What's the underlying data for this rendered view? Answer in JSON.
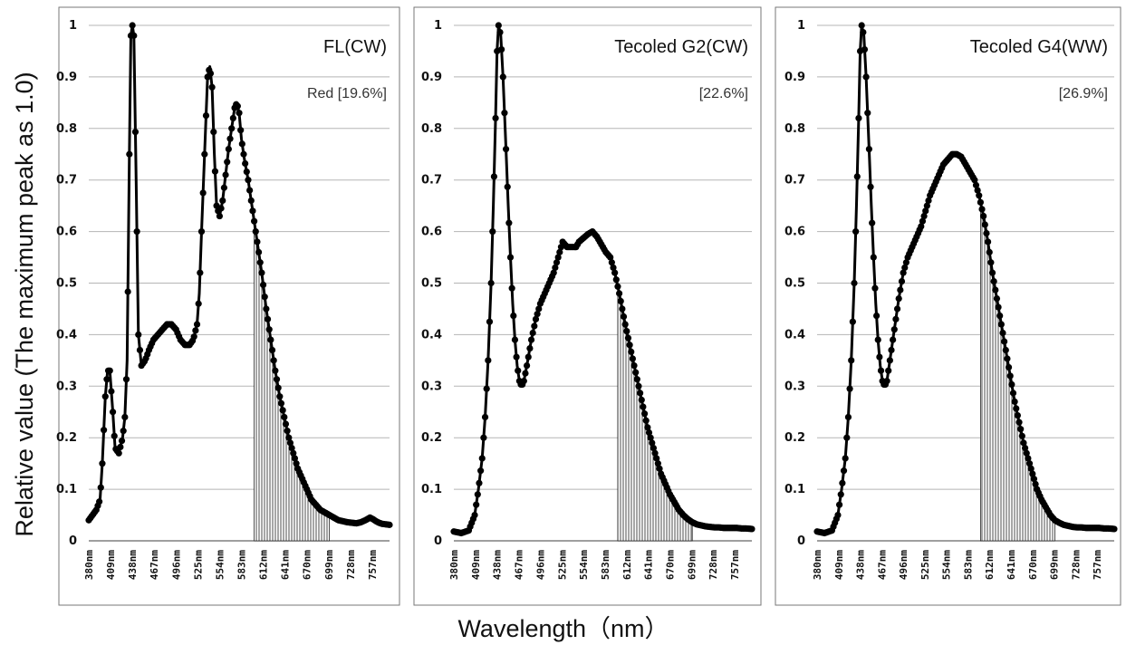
{
  "figure": {
    "ylabel": "Relative value (The maximum peak as 1.0)",
    "xlabel": "Wavelength（nm）"
  },
  "chart_data": [
    {
      "type": "line",
      "title": "FL(CW)",
      "annotation": "Red [19.6%]",
      "ylim": [
        0,
        1
      ],
      "yticks": [
        "0",
        "0.1",
        "0.2",
        "0.3",
        "0.4",
        "0.5",
        "0.6",
        "0.7",
        "0.8",
        "0.9",
        "1"
      ],
      "xlim": [
        380,
        780
      ],
      "xticks": [
        "380nm",
        "409nm",
        "438nm",
        "467nm",
        "496nm",
        "525nm",
        "554nm",
        "583nm",
        "612nm",
        "641nm",
        "670nm",
        "699nm",
        "728nm",
        "757nm"
      ],
      "grid": true,
      "shaded_region_nm": [
        600,
        700
      ],
      "series": [
        {
          "x": [
            380,
            385,
            390,
            395,
            398,
            402,
            405,
            408,
            412,
            415,
            420,
            425,
            428,
            431,
            434,
            436,
            438,
            440,
            443,
            446,
            450,
            455,
            460,
            466,
            472,
            478,
            484,
            490,
            496,
            502,
            508,
            514,
            519,
            524,
            527,
            530,
            534,
            538,
            541,
            544,
            547,
            550,
            554,
            558,
            562,
            566,
            570,
            574,
            577,
            580,
            583,
            587,
            592,
            598,
            604,
            610,
            616,
            622,
            628,
            634,
            640,
            646,
            652,
            658,
            664,
            670,
            676,
            682,
            688,
            694,
            700,
            706,
            712,
            718,
            724,
            730,
            736,
            742,
            748,
            754,
            758,
            762,
            766,
            770,
            775,
            780
          ],
          "y": [
            0.04,
            0.05,
            0.06,
            0.08,
            0.15,
            0.28,
            0.33,
            0.33,
            0.25,
            0.18,
            0.17,
            0.2,
            0.24,
            0.35,
            0.75,
            0.98,
            1.0,
            0.98,
            0.7,
            0.4,
            0.34,
            0.35,
            0.37,
            0.39,
            0.4,
            0.41,
            0.42,
            0.42,
            0.41,
            0.39,
            0.38,
            0.38,
            0.39,
            0.42,
            0.48,
            0.6,
            0.75,
            0.9,
            0.92,
            0.88,
            0.75,
            0.65,
            0.63,
            0.66,
            0.71,
            0.76,
            0.8,
            0.84,
            0.85,
            0.83,
            0.78,
            0.74,
            0.7,
            0.64,
            0.58,
            0.52,
            0.45,
            0.39,
            0.33,
            0.28,
            0.24,
            0.2,
            0.17,
            0.14,
            0.12,
            0.1,
            0.08,
            0.07,
            0.06,
            0.055,
            0.05,
            0.045,
            0.04,
            0.038,
            0.036,
            0.035,
            0.034,
            0.036,
            0.04,
            0.045,
            0.042,
            0.038,
            0.035,
            0.033,
            0.032,
            0.031
          ]
        }
      ]
    },
    {
      "type": "line",
      "title": "Tecoled G2(CW)",
      "annotation": "[22.6%]",
      "ylim": [
        0,
        1
      ],
      "yticks": [
        "0",
        "0.1",
        "0.2",
        "0.3",
        "0.4",
        "0.5",
        "0.6",
        "0.7",
        "0.8",
        "0.9",
        "1"
      ],
      "xlim": [
        380,
        780
      ],
      "xticks": [
        "380nm",
        "409nm",
        "438nm",
        "467nm",
        "496nm",
        "525nm",
        "554nm",
        "583nm",
        "612nm",
        "641nm",
        "670nm",
        "699nm",
        "728nm",
        "757nm"
      ],
      "grid": true,
      "shaded_region_nm": [
        600,
        700
      ],
      "series": [
        {
          "x": [
            380,
            390,
            400,
            408,
            413,
            418,
            422,
            426,
            430,
            433,
            436,
            438,
            440,
            443,
            446,
            450,
            453,
            456,
            459,
            462,
            465,
            468,
            471,
            474,
            478,
            484,
            490,
            496,
            502,
            508,
            514,
            520,
            526,
            532,
            538,
            544,
            548,
            552,
            556,
            560,
            566,
            572,
            578,
            584,
            590,
            596,
            602,
            606,
            610,
            616,
            622,
            628,
            634,
            640,
            646,
            652,
            658,
            664,
            670,
            676,
            682,
            688,
            694,
            700,
            706,
            712,
            718,
            724,
            730,
            736,
            742,
            748,
            754,
            760,
            766,
            772,
            780
          ],
          "y": [
            0.018,
            0.015,
            0.02,
            0.05,
            0.1,
            0.16,
            0.24,
            0.35,
            0.5,
            0.65,
            0.82,
            0.95,
            1.0,
            0.98,
            0.9,
            0.76,
            0.65,
            0.55,
            0.46,
            0.39,
            0.34,
            0.31,
            0.3,
            0.31,
            0.34,
            0.39,
            0.43,
            0.46,
            0.48,
            0.5,
            0.52,
            0.55,
            0.58,
            0.57,
            0.57,
            0.57,
            0.58,
            0.585,
            0.59,
            0.595,
            0.6,
            0.59,
            0.575,
            0.56,
            0.55,
            0.52,
            0.48,
            0.45,
            0.42,
            0.38,
            0.34,
            0.3,
            0.26,
            0.22,
            0.19,
            0.16,
            0.13,
            0.11,
            0.09,
            0.075,
            0.06,
            0.05,
            0.042,
            0.036,
            0.032,
            0.03,
            0.028,
            0.027,
            0.026,
            0.026,
            0.025,
            0.025,
            0.025,
            0.025,
            0.024,
            0.024,
            0.023
          ]
        }
      ]
    },
    {
      "type": "line",
      "title": "Tecoled G4(WW)",
      "annotation": "[26.9%]",
      "ylim": [
        0,
        1
      ],
      "yticks": [
        "0",
        "0.1",
        "0.2",
        "0.3",
        "0.4",
        "0.5",
        "0.6",
        "0.7",
        "0.8",
        "0.9",
        "1"
      ],
      "xlim": [
        380,
        780
      ],
      "xticks": [
        "380nm",
        "409nm",
        "438nm",
        "467nm",
        "496nm",
        "525nm",
        "554nm",
        "583nm",
        "612nm",
        "641nm",
        "670nm",
        "699nm",
        "728nm",
        "757nm"
      ],
      "grid": true,
      "shaded_region_nm": [
        600,
        700
      ],
      "series": [
        {
          "x": [
            380,
            390,
            400,
            408,
            413,
            418,
            422,
            426,
            430,
            433,
            436,
            438,
            440,
            443,
            446,
            450,
            453,
            456,
            459,
            462,
            465,
            468,
            471,
            474,
            478,
            484,
            490,
            496,
            502,
            508,
            514,
            520,
            526,
            532,
            538,
            544,
            550,
            556,
            562,
            568,
            574,
            580,
            584,
            588,
            592,
            598,
            604,
            610,
            616,
            622,
            628,
            634,
            640,
            646,
            652,
            658,
            664,
            670,
            676,
            682,
            688,
            694,
            700,
            706,
            712,
            718,
            724,
            730,
            736,
            742,
            748,
            754,
            760,
            766,
            772,
            780
          ],
          "y": [
            0.018,
            0.015,
            0.02,
            0.05,
            0.1,
            0.16,
            0.24,
            0.35,
            0.5,
            0.65,
            0.82,
            0.95,
            1.0,
            0.98,
            0.9,
            0.76,
            0.65,
            0.55,
            0.46,
            0.39,
            0.34,
            0.31,
            0.3,
            0.31,
            0.35,
            0.41,
            0.47,
            0.52,
            0.55,
            0.57,
            0.59,
            0.61,
            0.64,
            0.67,
            0.69,
            0.71,
            0.73,
            0.74,
            0.75,
            0.75,
            0.745,
            0.73,
            0.72,
            0.71,
            0.7,
            0.67,
            0.63,
            0.58,
            0.52,
            0.47,
            0.42,
            0.37,
            0.32,
            0.27,
            0.23,
            0.19,
            0.16,
            0.13,
            0.1,
            0.08,
            0.065,
            0.05,
            0.04,
            0.035,
            0.031,
            0.029,
            0.027,
            0.026,
            0.026,
            0.025,
            0.025,
            0.025,
            0.025,
            0.024,
            0.024,
            0.023
          ]
        }
      ]
    }
  ]
}
